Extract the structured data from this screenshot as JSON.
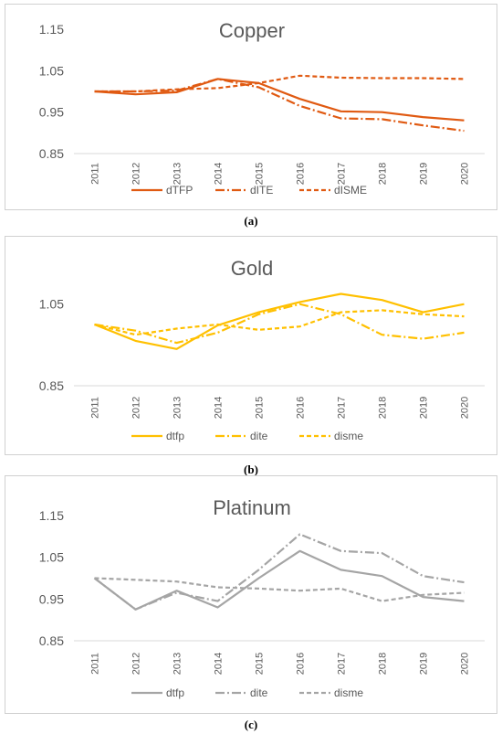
{
  "chart_data": [
    {
      "type": "line",
      "title": "Copper",
      "caption": "a",
      "x": [
        "2011",
        "2012",
        "2013",
        "2014",
        "2015",
        "2016",
        "2017",
        "2018",
        "2019",
        "2020"
      ],
      "yticks": [
        "1.15",
        "1.05",
        "0.95",
        "0.85"
      ],
      "ylim": [
        0.85,
        1.15
      ],
      "legend_position": "bottom",
      "series": [
        {
          "name": "dTFP",
          "style": "solid",
          "color": "#E05A12",
          "values": [
            1.0,
            0.993,
            0.998,
            1.03,
            1.02,
            0.982,
            0.952,
            0.95,
            0.938,
            0.93
          ]
        },
        {
          "name": "dITE",
          "style": "dashdot",
          "color": "#E05A12",
          "values": [
            1.0,
            1.0,
            1.002,
            1.03,
            1.01,
            0.965,
            0.935,
            0.933,
            0.918,
            0.905
          ]
        },
        {
          "name": "dISME",
          "style": "dashed",
          "color": "#E05A12",
          "values": [
            1.0,
            1.0,
            1.005,
            1.008,
            1.02,
            1.038,
            1.033,
            1.032,
            1.032,
            1.03
          ]
        }
      ]
    },
    {
      "type": "line",
      "title": "Gold",
      "caption": "b",
      "x": [
        "2011",
        "2012",
        "2013",
        "2014",
        "2015",
        "2016",
        "2017",
        "2018",
        "2019",
        "2020"
      ],
      "yticks": [
        "1.05",
        "0.85"
      ],
      "ylim": [
        0.85,
        1.15
      ],
      "legend_position": "bottom",
      "series": [
        {
          "name": "dtfp",
          "style": "solid",
          "color": "#FFC000",
          "values": [
            1.0,
            0.96,
            0.94,
            0.998,
            1.03,
            1.055,
            1.075,
            1.06,
            1.03,
            1.05
          ]
        },
        {
          "name": "dite",
          "style": "dashdot",
          "color": "#FFC000",
          "values": [
            1.0,
            0.985,
            0.955,
            0.98,
            1.025,
            1.05,
            1.025,
            0.975,
            0.965,
            0.98
          ]
        },
        {
          "name": "disme",
          "style": "dashed",
          "color": "#FFC000",
          "values": [
            1.0,
            0.975,
            0.99,
            1.0,
            0.987,
            0.995,
            1.03,
            1.035,
            1.025,
            1.02
          ]
        }
      ]
    },
    {
      "type": "line",
      "title": "Platinum",
      "caption": "c",
      "x": [
        "2011",
        "2012",
        "2013",
        "2014",
        "2015",
        "2016",
        "2017",
        "2018",
        "2019",
        "2020"
      ],
      "yticks": [
        "1.15",
        "1.05",
        "0.95",
        "0.85"
      ],
      "ylim": [
        0.85,
        1.15
      ],
      "legend_position": "bottom",
      "series": [
        {
          "name": "dtfp",
          "style": "solid",
          "color": "#A5A5A5",
          "values": [
            1.0,
            0.925,
            0.97,
            0.93,
            1.0,
            1.065,
            1.02,
            1.005,
            0.955,
            0.945
          ]
        },
        {
          "name": "dite",
          "style": "dashdot",
          "color": "#A5A5A5",
          "values": [
            1.0,
            0.925,
            0.965,
            0.945,
            1.02,
            1.105,
            1.065,
            1.06,
            1.005,
            0.99
          ]
        },
        {
          "name": "disme",
          "style": "dashed",
          "color": "#A5A5A5",
          "values": [
            1.0,
            0.996,
            0.992,
            0.978,
            0.975,
            0.97,
            0.975,
            0.945,
            0.96,
            0.965
          ]
        }
      ]
    }
  ],
  "captions": [
    "(a)",
    "(b)",
    "(c)"
  ]
}
